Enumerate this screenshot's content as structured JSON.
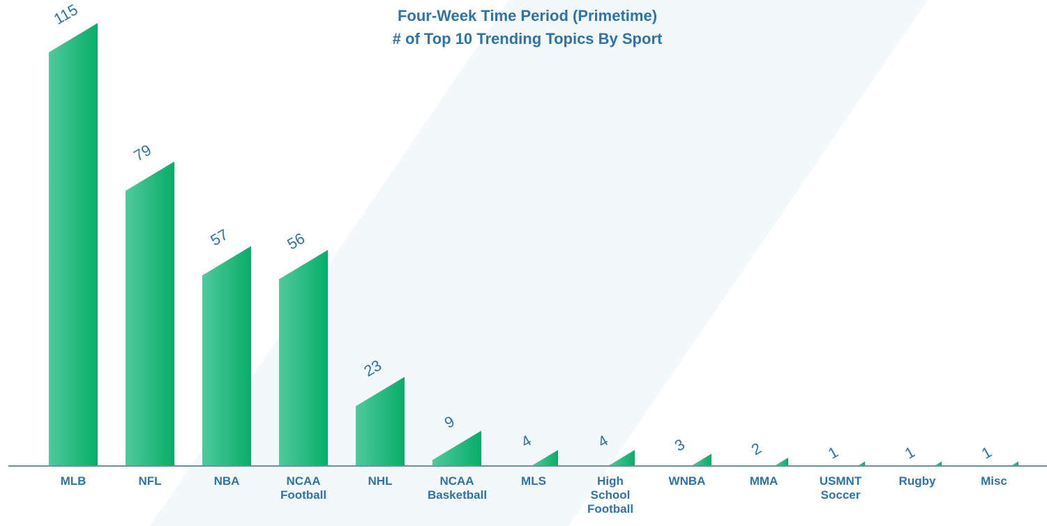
{
  "chart_data": {
    "type": "bar",
    "title": "Four-Week Time Period (Primetime)",
    "subtitle": "# of Top 10 Trending Topics By Sport",
    "categories": [
      "MLB",
      "NFL",
      "NBA",
      "NCAA Football",
      "NHL",
      "NCAA Basketball",
      "MLS",
      "High School Football",
      "WNBA",
      "MMA",
      "USMNT Soccer",
      "Rugby",
      "Misc"
    ],
    "values": [
      115,
      79,
      57,
      56,
      23,
      9,
      4,
      4,
      3,
      2,
      1,
      1,
      1
    ],
    "color": "#0aae6a"
  }
}
